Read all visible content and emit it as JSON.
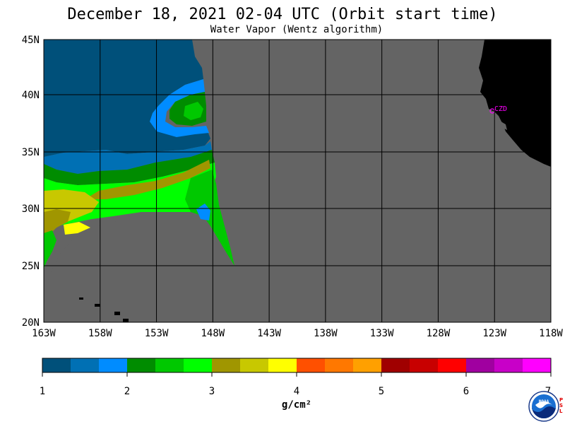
{
  "title": "December 18, 2021  02-04 UTC  (Orbit start time)",
  "subtitle": "Water Vapor (Wentz algorithm)",
  "map": {
    "lat_labels": [
      "45N",
      "40N",
      "35N",
      "30N",
      "25N",
      "20N"
    ],
    "lon_labels": [
      "163W",
      "158W",
      "153W",
      "148W",
      "143W",
      "138W",
      "133W",
      "128W",
      "123W",
      "118W"
    ],
    "station_label": "CZD",
    "colors": {
      "no_data": "#646464",
      "land": "#000000",
      "grid": "#000000",
      "station": "#ff00ff"
    }
  },
  "colorbar": {
    "ticks": [
      "1",
      "2",
      "3",
      "4",
      "5",
      "6",
      "7"
    ],
    "units": "g/cm²",
    "colors": [
      "#00507a",
      "#0070b4",
      "#008cff",
      "#008c00",
      "#00c800",
      "#00ff00",
      "#a09600",
      "#c8c800",
      "#ffff00",
      "#ff5000",
      "#ff7800",
      "#ffa000",
      "#a00000",
      "#c80000",
      "#ff0000",
      "#a000a0",
      "#c800c8",
      "#ff00ff"
    ]
  },
  "logo": {
    "text": "NOAA",
    "side_text": [
      "P",
      "S",
      "L"
    ]
  }
}
